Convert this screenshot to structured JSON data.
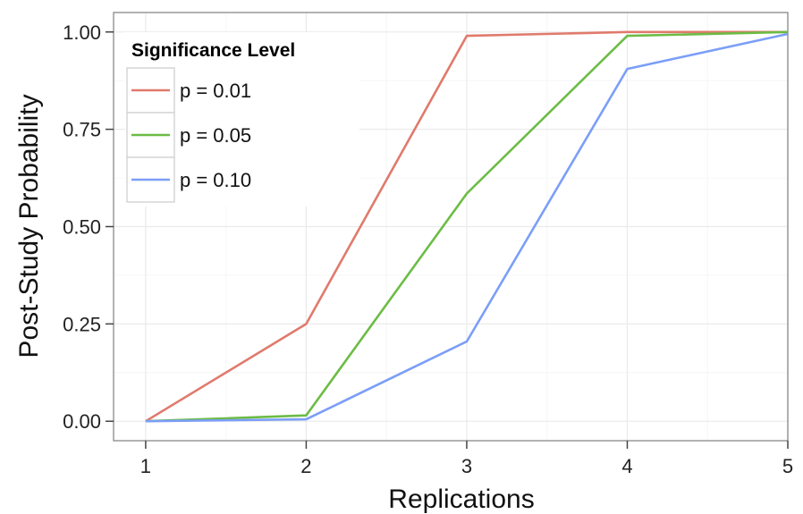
{
  "chart_data": {
    "type": "line",
    "xlabel": "Replications",
    "ylabel": "Post-Study Probability",
    "x": [
      1,
      2,
      3,
      4,
      5
    ],
    "xlim": [
      0.8,
      5.0
    ],
    "ylim": [
      -0.05,
      1.05
    ],
    "xticks": [
      1,
      2,
      3,
      4,
      5
    ],
    "xtick_labels": [
      "1",
      "2",
      "3",
      "4",
      "5"
    ],
    "yticks": [
      0.0,
      0.25,
      0.5,
      0.75,
      1.0
    ],
    "ytick_labels": [
      "0.00",
      "0.25",
      "0.50",
      "0.75",
      "1.00"
    ],
    "grid": true,
    "legend": {
      "title": "Significance Level",
      "placement": "top-left"
    },
    "series": [
      {
        "name": "p = 0.01",
        "color": "#e07a6c",
        "values": [
          0.0,
          0.25,
          0.99,
          1.0,
          1.0
        ]
      },
      {
        "name": "p = 0.05",
        "color": "#6cbc45",
        "values": [
          0.0,
          0.015,
          0.585,
          0.99,
          1.0
        ]
      },
      {
        "name": "p = 0.10",
        "color": "#7b9ef7",
        "values": [
          0.0,
          0.005,
          0.205,
          0.905,
          0.995
        ]
      }
    ]
  }
}
